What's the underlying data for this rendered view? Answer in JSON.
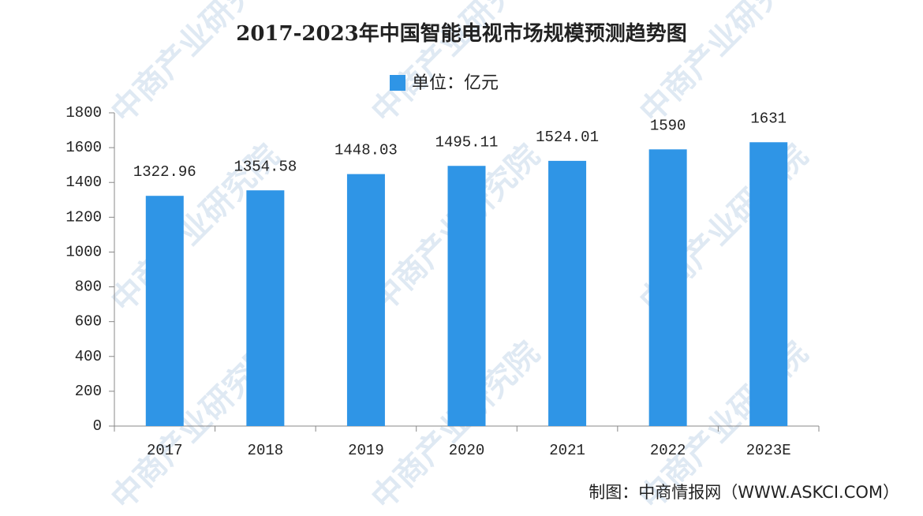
{
  "chart_data": {
    "type": "bar",
    "title": "2017-2023年中国智能电视市场规模预测趋势图",
    "categories": [
      "2017",
      "2018",
      "2019",
      "2020",
      "2021",
      "2022",
      "2023E"
    ],
    "series": [
      {
        "name": "单位：亿元",
        "color": "#2f95e6",
        "values": [
          1322.96,
          1354.58,
          1448.03,
          1495.11,
          1524.01,
          1590,
          1631
        ]
      }
    ],
    "ylim": [
      0,
      1800
    ],
    "yticks": [
      0,
      200,
      400,
      600,
      800,
      1000,
      1200,
      1400,
      1600,
      1800
    ],
    "grid": false,
    "legend": "top",
    "source": "制图：中商情报网（WWW.ASKCI.COM）",
    "watermark": "中商产业研究院"
  }
}
